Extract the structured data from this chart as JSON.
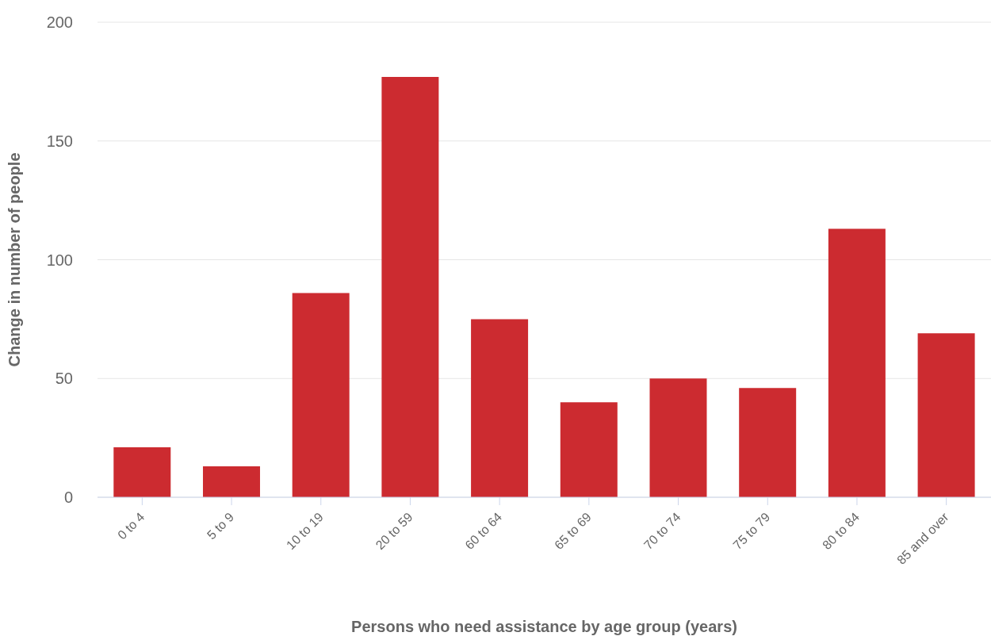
{
  "chart_data": {
    "type": "bar",
    "xlabel": "Persons who need assistance by age group (years)",
    "ylabel": "Change in number of people",
    "categories": [
      "0 to 4",
      "5 to 9",
      "10 to 19",
      "20 to 59",
      "60 to 64",
      "65 to 69",
      "70 to 74",
      "75 to 79",
      "80 to 84",
      "85 and over"
    ],
    "values": [
      21,
      13,
      86,
      177,
      75,
      40,
      50,
      46,
      113,
      69
    ],
    "color": "#cc2b30",
    "ylim": [
      0,
      200
    ],
    "yticks": [
      0,
      50,
      100,
      150,
      200
    ],
    "grid": "y",
    "legend": false
  }
}
